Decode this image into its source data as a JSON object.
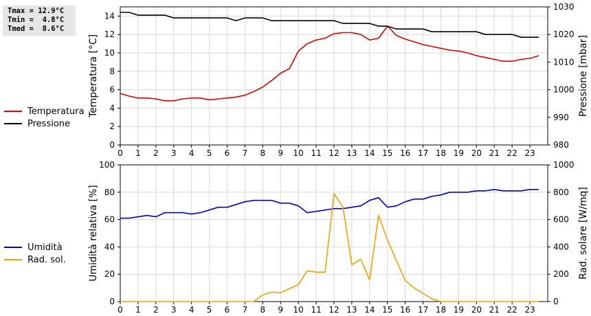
{
  "stats": {
    "tmax": "Tmax = 12.9°C",
    "tmin": "Tmin =  4.8°C",
    "tmed": "Tmed =  8.6°C"
  },
  "legend_top": [
    {
      "name": "Temperatura",
      "color": "#dd0000"
    },
    {
      "name": "Pressione",
      "color": "#000000"
    }
  ],
  "legend_bottom": [
    {
      "name": "Umidità",
      "color": "#0000cc"
    },
    {
      "name": "Rad. sol.",
      "color": "#f5a000"
    }
  ],
  "chart_data": [
    {
      "type": "line",
      "x_ticks": [
        "0",
        "1",
        "2",
        "3",
        "4",
        "5",
        "6",
        "7",
        "8",
        "9",
        "10",
        "11",
        "12",
        "13",
        "14",
        "15",
        "16",
        "17",
        "18",
        "19",
        "20",
        "21",
        "22",
        "23"
      ],
      "xlim": [
        0,
        24
      ],
      "ylabel": "Temperatura [°C]",
      "ylim": [
        0,
        15
      ],
      "y_ticks": [
        "0",
        "2",
        "4",
        "6",
        "8",
        "10",
        "12",
        "14"
      ],
      "y2label": "Pressione [mbar]",
      "y2lim": [
        980,
        1030
      ],
      "y2_ticks": [
        "980",
        "990",
        "1000",
        "1010",
        "1020",
        "1030"
      ],
      "grid": true,
      "series": [
        {
          "name": "Temperatura",
          "axis": "left",
          "color": "#dd0000",
          "x": [
            0,
            0.5,
            1,
            1.5,
            2,
            2.5,
            3,
            3.5,
            4,
            4.5,
            5,
            5.5,
            6,
            6.5,
            7,
            7.5,
            8,
            8.5,
            9,
            9.5,
            10,
            10.5,
            11,
            11.5,
            12,
            12.5,
            13,
            13.5,
            14,
            14.5,
            15,
            15.5,
            16,
            16.5,
            17,
            17.5,
            18,
            18.5,
            19,
            19.5,
            20,
            20.5,
            21,
            21.5,
            22,
            22.5,
            23,
            23.5
          ],
          "values": [
            5.6,
            5.3,
            5.1,
            5.1,
            5.0,
            4.8,
            4.8,
            5.0,
            5.1,
            5.1,
            4.9,
            5.0,
            5.1,
            5.2,
            5.4,
            5.8,
            6.3,
            7.0,
            7.8,
            8.3,
            10.2,
            11.0,
            11.4,
            11.6,
            12.1,
            12.2,
            12.2,
            12.0,
            11.4,
            11.6,
            12.9,
            11.9,
            11.5,
            11.2,
            10.9,
            10.7,
            10.5,
            10.3,
            10.2,
            10.0,
            9.7,
            9.5,
            9.3,
            9.1,
            9.1,
            9.3,
            9.4,
            9.7
          ]
        },
        {
          "name": "Pressione",
          "axis": "right",
          "color": "#000000",
          "x": [
            0,
            0.5,
            1,
            1.5,
            2,
            2.5,
            3,
            3.5,
            4,
            4.5,
            5,
            5.5,
            6,
            6.5,
            7,
            7.5,
            8,
            8.5,
            9,
            9.5,
            10,
            10.5,
            11,
            11.5,
            12,
            12.5,
            13,
            13.5,
            14,
            14.5,
            15,
            15.5,
            16,
            16.5,
            17,
            17.5,
            18,
            18.5,
            19,
            19.5,
            20,
            20.5,
            21,
            21.5,
            22,
            22.5,
            23,
            23.5
          ],
          "values": [
            1028,
            1028,
            1027,
            1027,
            1027,
            1027,
            1026,
            1026,
            1026,
            1026,
            1026,
            1026,
            1026,
            1025,
            1026,
            1026,
            1026,
            1025,
            1025,
            1025,
            1025,
            1025,
            1025,
            1025,
            1025,
            1024,
            1024,
            1024,
            1024,
            1023,
            1023,
            1022,
            1022,
            1022,
            1022,
            1021,
            1021,
            1021,
            1021,
            1021,
            1021,
            1020,
            1020,
            1020,
            1020,
            1019,
            1019,
            1019
          ]
        }
      ]
    },
    {
      "type": "line",
      "x_ticks": [
        "0",
        "1",
        "2",
        "3",
        "4",
        "5",
        "6",
        "7",
        "8",
        "9",
        "10",
        "11",
        "12",
        "13",
        "14",
        "15",
        "16",
        "17",
        "18",
        "19",
        "20",
        "21",
        "22",
        "23"
      ],
      "xlim": [
        0,
        24
      ],
      "ylabel": "Umidità relativa [%]",
      "ylim": [
        0,
        100
      ],
      "y_ticks": [
        "0",
        "20",
        "40",
        "60",
        "80",
        "100"
      ],
      "y2label": "Rad. solare [W/mq]",
      "y2lim": [
        0,
        1000
      ],
      "y2_ticks": [
        "0",
        "200",
        "400",
        "600",
        "800",
        "1000"
      ],
      "grid": true,
      "series": [
        {
          "name": "Umidità",
          "axis": "left",
          "color": "#0000cc",
          "x": [
            0,
            0.5,
            1,
            1.5,
            2,
            2.5,
            3,
            3.5,
            4,
            4.5,
            5,
            5.5,
            6,
            6.5,
            7,
            7.5,
            8,
            8.5,
            9,
            9.5,
            10,
            10.5,
            11,
            11.5,
            12,
            12.5,
            13,
            13.5,
            14,
            14.5,
            15,
            15.5,
            16,
            16.5,
            17,
            17.5,
            18,
            18.5,
            19,
            19.5,
            20,
            20.5,
            21,
            21.5,
            22,
            22.5,
            23,
            23.5
          ],
          "values": [
            61,
            61,
            62,
            63,
            62,
            65,
            65,
            65,
            64,
            65,
            67,
            69,
            69,
            71,
            73,
            74,
            74,
            74,
            72,
            72,
            70,
            65,
            66,
            67,
            68,
            68,
            69,
            70,
            74,
            76,
            69,
            70,
            73,
            75,
            75,
            77,
            78,
            80,
            80,
            80,
            81,
            81,
            82,
            81,
            81,
            81,
            82,
            82
          ]
        },
        {
          "name": "Rad. sol.",
          "axis": "right",
          "color": "#f5a000",
          "x": [
            0,
            0.5,
            1,
            1.5,
            2,
            2.5,
            3,
            3.5,
            4,
            4.5,
            5,
            5.5,
            6,
            6.5,
            7,
            7.5,
            8,
            8.5,
            9,
            9.5,
            10,
            10.5,
            11,
            11.5,
            12,
            12.5,
            13,
            13.5,
            14,
            14.5,
            15,
            15.5,
            16,
            16.5,
            17,
            17.5,
            18,
            18.5,
            19,
            19.5,
            20,
            20.5,
            21,
            21.5,
            22,
            22.5,
            23,
            23.5
          ],
          "values": [
            0,
            0,
            0,
            0,
            0,
            0,
            0,
            0,
            0,
            0,
            0,
            0,
            0,
            0,
            0,
            0,
            50,
            70,
            65,
            95,
            125,
            225,
            215,
            215,
            790,
            690,
            270,
            310,
            160,
            630,
            450,
            300,
            155,
            100,
            60,
            20,
            0,
            0,
            0,
            0,
            0,
            0,
            0,
            0,
            0,
            0,
            0,
            0
          ]
        }
      ]
    }
  ]
}
